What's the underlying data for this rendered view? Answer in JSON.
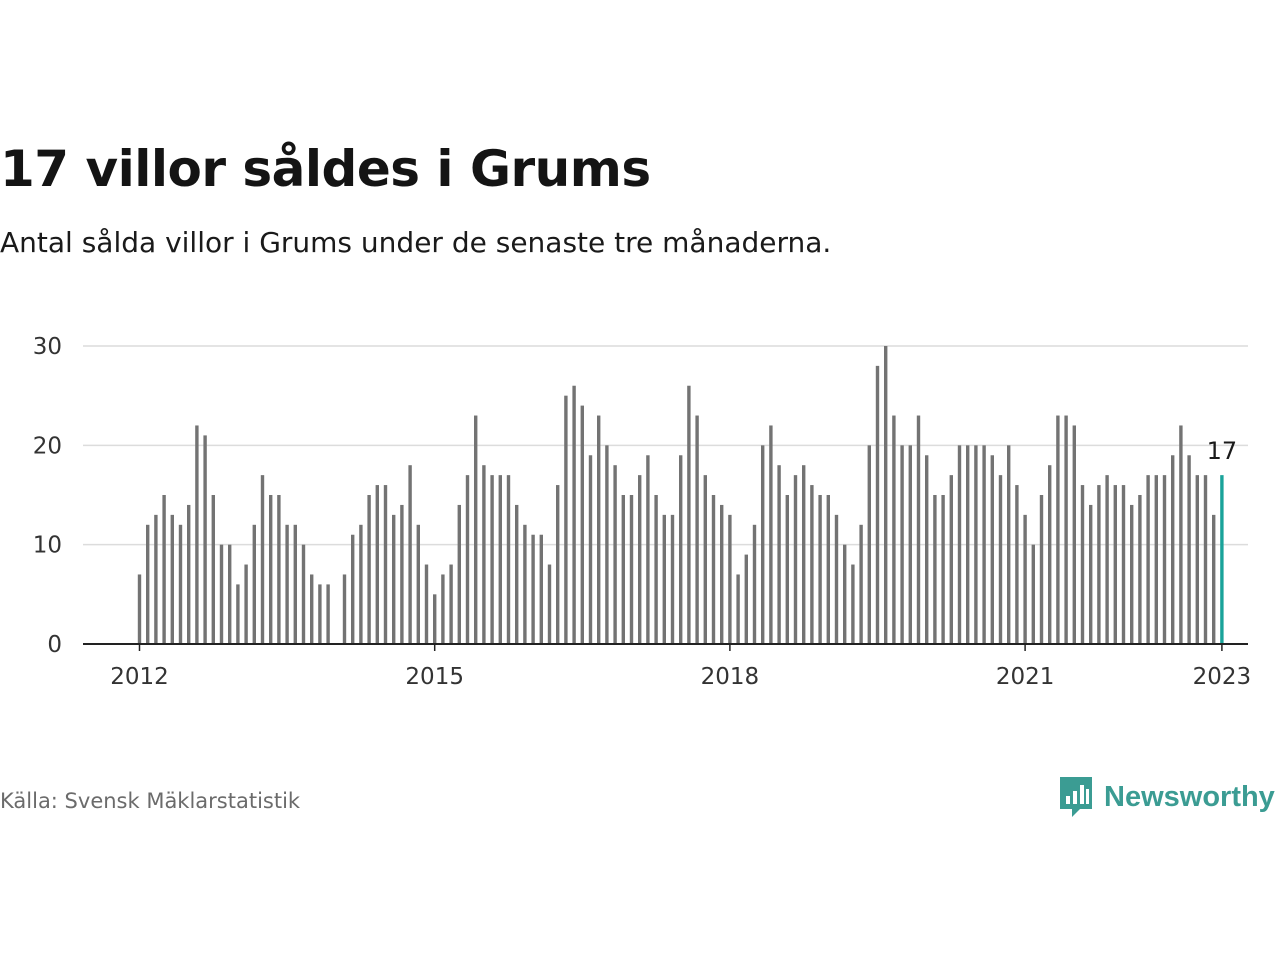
{
  "header": {
    "title": "17 villor såldes i Grums",
    "subtitle": "Antal sålda villor i Grums under de senaste tre månaderna."
  },
  "footer": {
    "source": "Källa: Svensk Mäklarstatistik",
    "brand": "Newsworthy"
  },
  "colors": {
    "bar": "#737373",
    "highlight": "#1aa39a",
    "grid": "#dcdcdc",
    "axis": "#222222",
    "brand": "#3b9c93"
  },
  "chart_data": {
    "type": "bar",
    "x_start": "2012-01",
    "x_interval": "month",
    "values": [
      7,
      12,
      13,
      15,
      13,
      12,
      14,
      22,
      21,
      15,
      10,
      10,
      6,
      8,
      12,
      17,
      15,
      15,
      12,
      12,
      10,
      7,
      6,
      6,
      null,
      7,
      11,
      12,
      15,
      16,
      16,
      13,
      14,
      18,
      12,
      8,
      5,
      7,
      8,
      14,
      17,
      23,
      18,
      17,
      17,
      17,
      14,
      12,
      11,
      11,
      8,
      16,
      25,
      26,
      24,
      19,
      23,
      20,
      18,
      15,
      15,
      17,
      19,
      15,
      13,
      13,
      19,
      26,
      23,
      17,
      15,
      14,
      13,
      7,
      9,
      12,
      20,
      22,
      18,
      15,
      17,
      18,
      16,
      15,
      15,
      13,
      10,
      8,
      12,
      20,
      28,
      30,
      23,
      20,
      20,
      23,
      19,
      15,
      15,
      17,
      20,
      20,
      20,
      20,
      19,
      17,
      20,
      16,
      13,
      10,
      15,
      18,
      23,
      23,
      22,
      16,
      14,
      16,
      17,
      16,
      16,
      14,
      15,
      17,
      17,
      17,
      19,
      22,
      19,
      17,
      17,
      13,
      17
    ],
    "highlight_last": true,
    "highlight_label": "17",
    "x_tick_labels": [
      "2012",
      "2015",
      "2018",
      "2021",
      "2023"
    ],
    "y_ticks": [
      0,
      10,
      20,
      30
    ],
    "ylim": [
      0,
      30
    ],
    "grid": true
  }
}
